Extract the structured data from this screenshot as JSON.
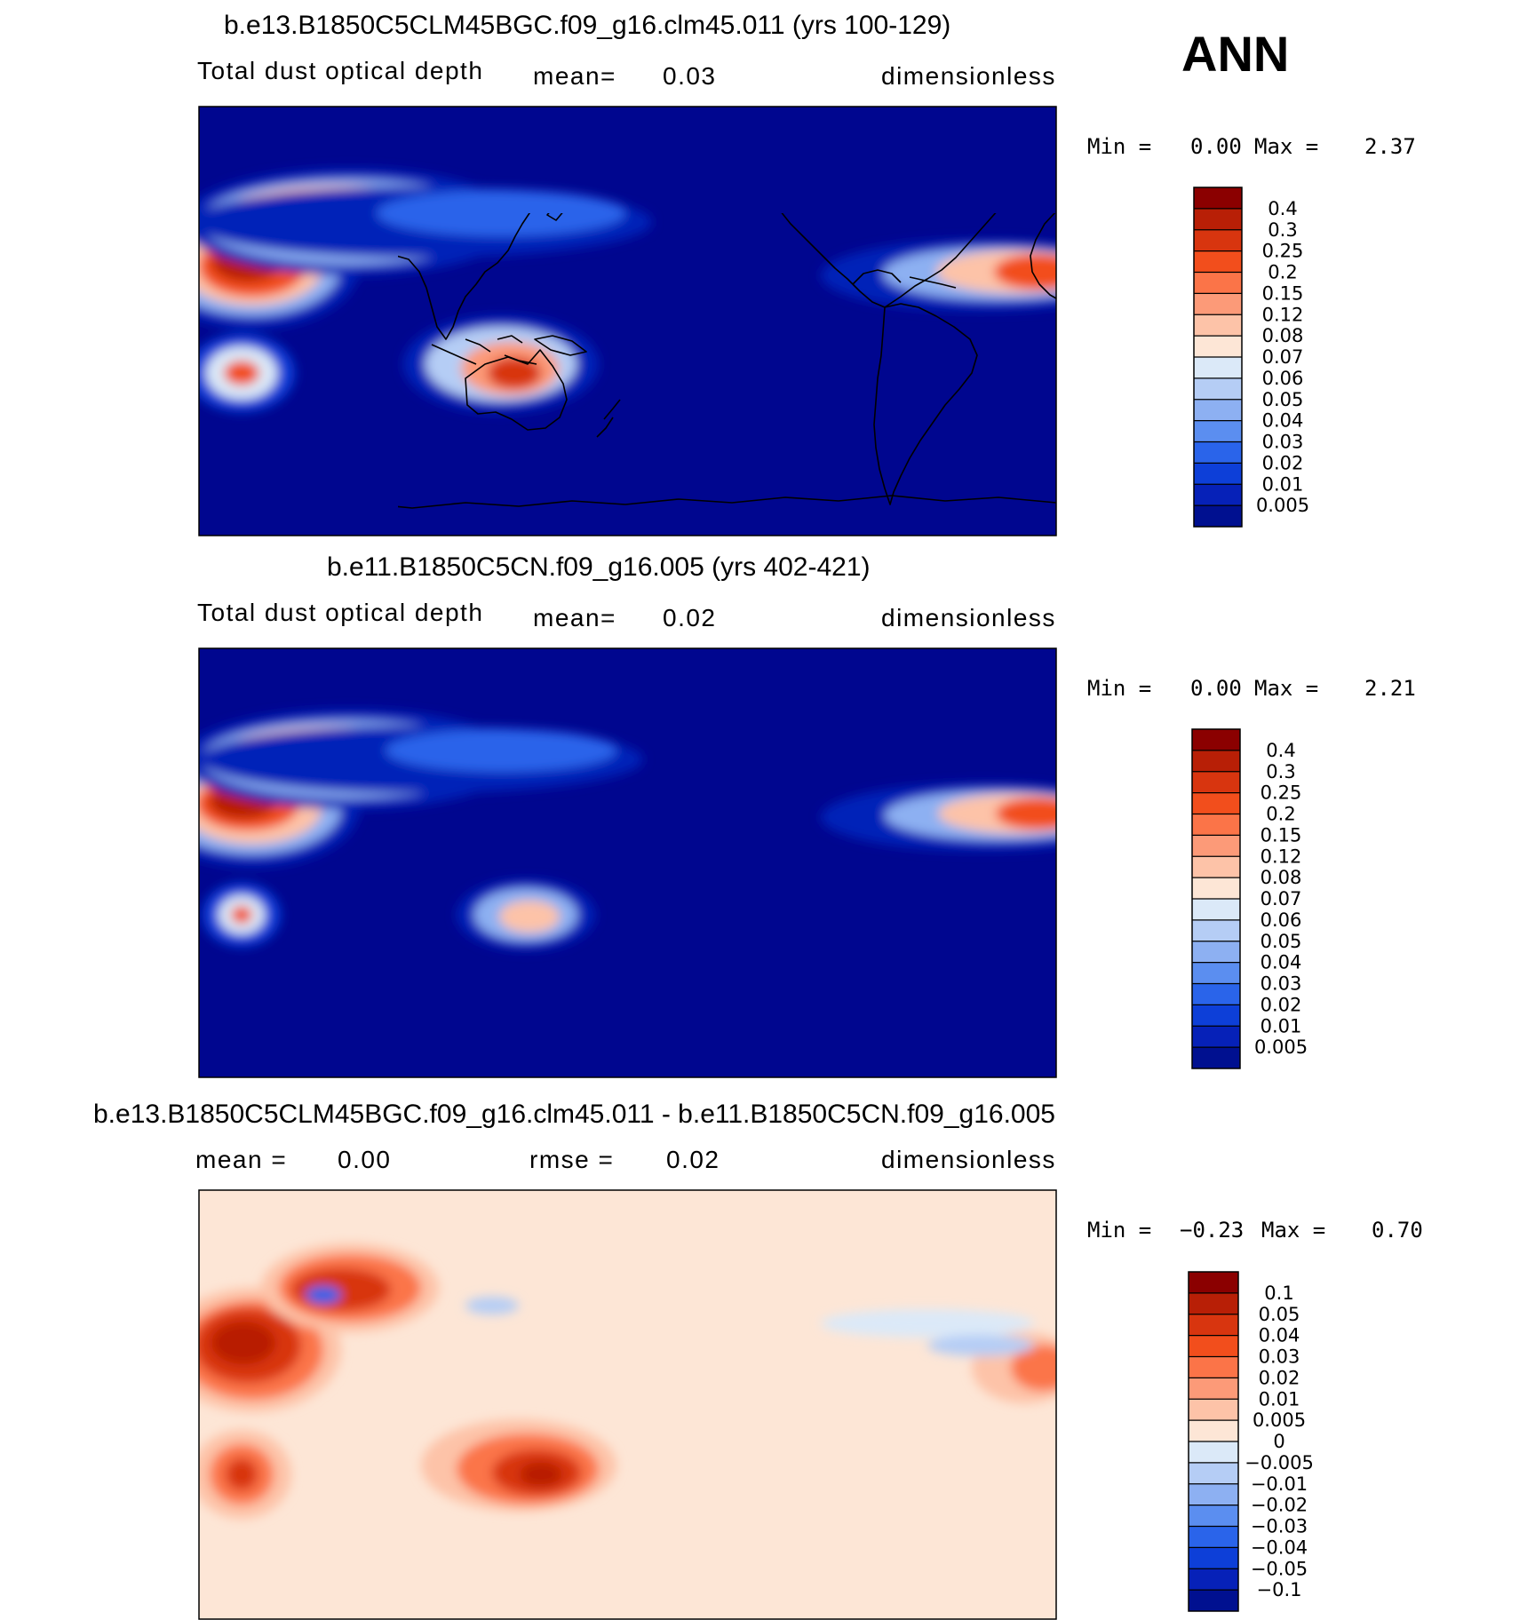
{
  "season": "ANN",
  "panels": [
    {
      "title": "b.e13.B1850C5CLM45BGC.f09_g16.clm45.011 (yrs 100-129)",
      "variable": "Total dust optical depth",
      "stat1_label": "mean=",
      "stat1_value": "0.03",
      "units": "dimensionless",
      "min_label": "Min =",
      "min_value": "0.00",
      "max_label": "Max =",
      "max_value": "2.37"
    },
    {
      "title": "b.e11.B1850C5CN.f09_g16.005 (yrs 402-421)",
      "variable": "Total dust optical depth",
      "stat1_label": "mean=",
      "stat1_value": "0.02",
      "units": "dimensionless",
      "min_label": "Min =",
      "min_value": "0.00",
      "max_label": "Max =",
      "max_value": "2.21"
    },
    {
      "title": "b.e13.B1850C5CLM45BGC.f09_g16.clm45.011 - b.e11.B1850C5CN.f09_g16.005",
      "stat1_label": "mean =",
      "stat1_value": "0.00",
      "stat2_label": "rmse =",
      "stat2_value": "0.02",
      "units": "dimensionless",
      "min_label": "Min =",
      "min_value": "−0.23",
      "max_label": "Max =",
      "max_value": "0.70"
    }
  ],
  "chart_data": [
    {
      "type": "heatmap",
      "title": "b.e13.B1850C5CLM45BGC.f09_g16.clm45.011 (yrs 100-129)",
      "colorbar_levels": [
        "0.4",
        "0.3",
        "0.25",
        "0.2",
        "0.15",
        "0.12",
        "0.08",
        "0.07",
        "0.06",
        "0.05",
        "0.04",
        "0.03",
        "0.02",
        "0.01",
        "0.005"
      ],
      "colorbar_colors": [
        "#8b0000",
        "#b81f06",
        "#d8350f",
        "#f24e1c",
        "#fb7448",
        "#fc9a78",
        "#fdc3a8",
        "#fde6d6",
        "#dbe9f8",
        "#b5cdf5",
        "#8db0f2",
        "#5b8ef0",
        "#2a64ea",
        "#0d3fd8",
        "#0621b8",
        "#001090"
      ],
      "background_color": "#00068f",
      "value_range": [
        0.0,
        2.37
      ]
    },
    {
      "type": "heatmap",
      "title": "b.e11.B1850C5CN.f09_g16.005 (yrs 402-421)",
      "colorbar_levels": [
        "0.4",
        "0.3",
        "0.25",
        "0.2",
        "0.15",
        "0.12",
        "0.08",
        "0.07",
        "0.06",
        "0.05",
        "0.04",
        "0.03",
        "0.02",
        "0.01",
        "0.005"
      ],
      "colorbar_colors": [
        "#8b0000",
        "#b81f06",
        "#d8350f",
        "#f24e1c",
        "#fb7448",
        "#fc9a78",
        "#fdc3a8",
        "#fde6d6",
        "#dbe9f8",
        "#b5cdf5",
        "#8db0f2",
        "#5b8ef0",
        "#2a64ea",
        "#0d3fd8",
        "#0621b8",
        "#001090"
      ],
      "background_color": "#00068f",
      "value_range": [
        0.0,
        2.21
      ]
    },
    {
      "type": "heatmap",
      "title": "b.e13.B1850C5CLM45BGC.f09_g16.clm45.011 - b.e11.B1850C5CN.f09_g16.005",
      "colorbar_levels": [
        "0.1",
        "0.05",
        "0.04",
        "0.03",
        "0.02",
        "0.01",
        "0.005",
        "0",
        "−0.005",
        "−0.01",
        "−0.02",
        "−0.03",
        "−0.04",
        "−0.05",
        "−0.1"
      ],
      "colorbar_colors": [
        "#8b0000",
        "#b81f06",
        "#d8350f",
        "#f24e1c",
        "#fb7448",
        "#fc9a78",
        "#fdc3a8",
        "#fde6d6",
        "#dbe9f8",
        "#b5cdf5",
        "#8db0f2",
        "#5b8ef0",
        "#2a64ea",
        "#0d3fd8",
        "#0621b8",
        "#001090"
      ],
      "background_color": "#fde6d6",
      "value_range": [
        -0.23,
        0.7
      ]
    }
  ]
}
